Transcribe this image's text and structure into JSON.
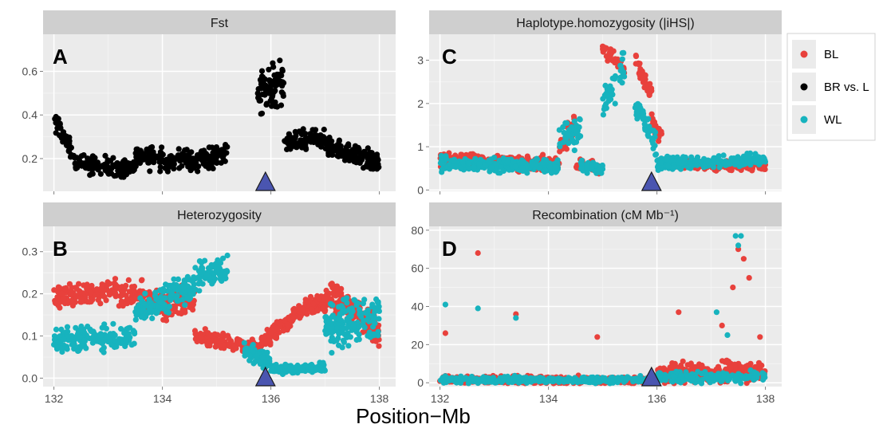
{
  "x_axis_title": "Position−Mb",
  "legend": {
    "items": [
      {
        "label": "BL",
        "color": "#e8413c"
      },
      {
        "label": "BR vs. L",
        "color": "#000000"
      },
      {
        "label": "WL",
        "color": "#17b3be"
      }
    ]
  },
  "marker": {
    "position_mb": 135.9,
    "shape": "triangle",
    "color": "#4a55b0"
  },
  "chart_data": [
    {
      "type": "scatter",
      "panel": "A",
      "title": "Fst",
      "xlim": [
        131.8,
        138.3
      ],
      "ylim": [
        0.05,
        0.77
      ],
      "xticks": [
        "132",
        "134",
        "136",
        "138"
      ],
      "yticks": [
        {
          "v": 0.2,
          "label": "0.2"
        },
        {
          "v": 0.4,
          "label": "0.4"
        },
        {
          "v": 0.6,
          "label": "0.6"
        }
      ],
      "series": [
        {
          "name": "BR vs. L",
          "color": "#000000",
          "segments": [
            {
              "x": [
                132.0,
                132.4
              ],
              "y": [
                0.38,
                0.2
              ],
              "n": 60,
              "spread": 0.06
            },
            {
              "x": [
                132.4,
                133.5
              ],
              "y": [
                0.18,
                0.15
              ],
              "n": 120,
              "spread": 0.06
            },
            {
              "x": [
                133.5,
                134.0
              ],
              "y": [
                0.22,
                0.2
              ],
              "n": 60,
              "spread": 0.08
            },
            {
              "x": [
                134.0,
                135.2
              ],
              "y": [
                0.18,
                0.22
              ],
              "n": 140,
              "spread": 0.07
            },
            {
              "x": [
                135.75,
                136.25
              ],
              "y": [
                0.5,
                0.55
              ],
              "n": 80,
              "spread": 0.14
            },
            {
              "x": [
                136.25,
                137.0
              ],
              "y": [
                0.27,
                0.3
              ],
              "n": 100,
              "spread": 0.06
            },
            {
              "x": [
                137.0,
                138.0
              ],
              "y": [
                0.25,
                0.18
              ],
              "n": 140,
              "spread": 0.07
            }
          ]
        }
      ]
    },
    {
      "type": "scatter",
      "panel": "B",
      "title": "Heterozygosity",
      "xlim": [
        131.8,
        138.3
      ],
      "ylim": [
        -0.02,
        0.36
      ],
      "xticks": [
        "132",
        "134",
        "136",
        "138"
      ],
      "yticks": [
        {
          "v": 0.0,
          "label": "0.0"
        },
        {
          "v": 0.1,
          "label": "0.1"
        },
        {
          "v": 0.2,
          "label": "0.2"
        },
        {
          "v": 0.3,
          "label": "0.3"
        }
      ],
      "series": [
        {
          "name": "BL",
          "color": "#e8413c",
          "segments": [
            {
              "x": [
                132.0,
                133.2
              ],
              "y": [
                0.19,
                0.21
              ],
              "n": 140,
              "spread": 0.04
            },
            {
              "x": [
                133.2,
                134.0
              ],
              "y": [
                0.2,
                0.18
              ],
              "n": 90,
              "spread": 0.05
            },
            {
              "x": [
                134.0,
                134.6
              ],
              "y": [
                0.17,
                0.19
              ],
              "n": 80,
              "spread": 0.05
            },
            {
              "x": [
                134.6,
                135.8
              ],
              "y": [
                0.1,
                0.07
              ],
              "n": 130,
              "spread": 0.03
            },
            {
              "x": [
                135.8,
                136.4
              ],
              "y": [
                0.08,
                0.14
              ],
              "n": 90,
              "spread": 0.03
            },
            {
              "x": [
                136.4,
                137.1
              ],
              "y": [
                0.15,
                0.19
              ],
              "n": 110,
              "spread": 0.03
            },
            {
              "x": [
                137.1,
                138.0
              ],
              "y": [
                0.2,
                0.11
              ],
              "n": 140,
              "spread": 0.06
            }
          ]
        },
        {
          "name": "WL",
          "color": "#17b3be",
          "segments": [
            {
              "x": [
                132.0,
                133.5
              ],
              "y": [
                0.09,
                0.1
              ],
              "n": 170,
              "spread": 0.04
            },
            {
              "x": [
                133.5,
                134.6
              ],
              "y": [
                0.16,
                0.22
              ],
              "n": 130,
              "spread": 0.05
            },
            {
              "x": [
                134.6,
                135.2
              ],
              "y": [
                0.24,
                0.26
              ],
              "n": 80,
              "spread": 0.05
            },
            {
              "x": [
                135.5,
                136.0
              ],
              "y": [
                0.06,
                0.04
              ],
              "n": 70,
              "spread": 0.03
            },
            {
              "x": [
                136.0,
                137.0
              ],
              "y": [
                0.02,
                0.025
              ],
              "n": 130,
              "spread": 0.015
            },
            {
              "x": [
                137.0,
                138.0
              ],
              "y": [
                0.12,
                0.15
              ],
              "n": 150,
              "spread": 0.08
            }
          ]
        }
      ]
    },
    {
      "type": "scatter",
      "panel": "C",
      "title": "Haplotype.homozygosity (|iHS|)",
      "xlim": [
        131.8,
        138.3
      ],
      "ylim": [
        -0.03,
        3.6
      ],
      "xticks": [
        "132",
        "134",
        "136",
        "138"
      ],
      "yticks": [
        {
          "v": 0,
          "label": "0"
        },
        {
          "v": 1,
          "label": "1"
        },
        {
          "v": 2,
          "label": "2"
        },
        {
          "v": 3,
          "label": "3"
        }
      ],
      "series": [
        {
          "name": "BL",
          "color": "#e8413c",
          "segments": [
            {
              "x": [
                132.0,
                134.2
              ],
              "y": [
                0.7,
                0.6
              ],
              "n": 260,
              "spread": 0.25
            },
            {
              "x": [
                134.2,
                134.5
              ],
              "y": [
                1.0,
                1.6
              ],
              "n": 40,
              "spread": 0.4
            },
            {
              "x": [
                134.5,
                135.0
              ],
              "y": [
                0.6,
                0.5
              ],
              "n": 50,
              "spread": 0.2
            },
            {
              "x": [
                135.0,
                135.4
              ],
              "y": [
                3.2,
                2.8
              ],
              "n": 35,
              "spread": 0.25
            },
            {
              "x": [
                135.6,
                135.9
              ],
              "y": [
                3.0,
                2.2
              ],
              "n": 40,
              "spread": 0.3
            },
            {
              "x": [
                135.9,
                136.1
              ],
              "y": [
                1.6,
                1.2
              ],
              "n": 30,
              "spread": 0.3
            },
            {
              "x": [
                136.1,
                138.0
              ],
              "y": [
                0.6,
                0.55
              ],
              "n": 220,
              "spread": 0.15
            }
          ]
        },
        {
          "name": "WL",
          "color": "#17b3be",
          "segments": [
            {
              "x": [
                132.0,
                134.2
              ],
              "y": [
                0.6,
                0.55
              ],
              "n": 260,
              "spread": 0.22
            },
            {
              "x": [
                134.2,
                134.6
              ],
              "y": [
                1.2,
                1.4
              ],
              "n": 45,
              "spread": 0.45
            },
            {
              "x": [
                134.6,
                135.0
              ],
              "y": [
                0.55,
                0.5
              ],
              "n": 50,
              "spread": 0.2
            },
            {
              "x": [
                135.0,
                135.4
              ],
              "y": [
                2.0,
                2.8
              ],
              "n": 40,
              "spread": 0.5
            },
            {
              "x": [
                135.6,
                136.0
              ],
              "y": [
                2.0,
                1.0
              ],
              "n": 45,
              "spread": 0.45
            },
            {
              "x": [
                136.0,
                138.0
              ],
              "y": [
                0.6,
                0.7
              ],
              "n": 240,
              "spread": 0.2
            }
          ]
        }
      ]
    },
    {
      "type": "scatter",
      "panel": "D",
      "title": "Recombination (cM Mb⁻¹)",
      "xlim": [
        131.8,
        138.3
      ],
      "ylim": [
        -2,
        82
      ],
      "xticks": [
        "132",
        "134",
        "136",
        "138"
      ],
      "yticks": [
        {
          "v": 0,
          "label": "0"
        },
        {
          "v": 20,
          "label": "20"
        },
        {
          "v": 40,
          "label": "40"
        },
        {
          "v": 60,
          "label": "60"
        },
        {
          "v": 80,
          "label": "80"
        }
      ],
      "series": [
        {
          "name": "BL",
          "color": "#e8413c",
          "segments": [
            {
              "x": [
                132.0,
                136.0
              ],
              "y": [
                1.5,
                1.5
              ],
              "n": 420,
              "spread": 3
            },
            {
              "x": [
                136.0,
                138.0
              ],
              "y": [
                5,
                6
              ],
              "n": 260,
              "spread": 8
            }
          ],
          "points": [
            [
              132.1,
              26
            ],
            [
              132.7,
              68
            ],
            [
              133.4,
              36
            ],
            [
              134.9,
              24
            ],
            [
              136.4,
              37
            ],
            [
              137.5,
              70
            ],
            [
              137.6,
              65
            ],
            [
              137.7,
              55
            ],
            [
              137.4,
              50
            ],
            [
              137.2,
              30
            ],
            [
              137.9,
              24
            ]
          ]
        },
        {
          "name": "WL",
          "color": "#17b3be",
          "segments": [
            {
              "x": [
                132.0,
                136.0
              ],
              "y": [
                1.5,
                1.5
              ],
              "n": 300,
              "spread": 2.5
            },
            {
              "x": [
                136.0,
                138.0
              ],
              "y": [
                2.5,
                3
              ],
              "n": 160,
              "spread": 4
            }
          ],
          "points": [
            [
              132.1,
              41
            ],
            [
              132.7,
              39
            ],
            [
              133.4,
              34
            ],
            [
              137.45,
              77
            ],
            [
              137.55,
              77
            ],
            [
              137.5,
              72
            ],
            [
              137.1,
              37
            ],
            [
              137.3,
              25
            ]
          ]
        }
      ]
    }
  ]
}
